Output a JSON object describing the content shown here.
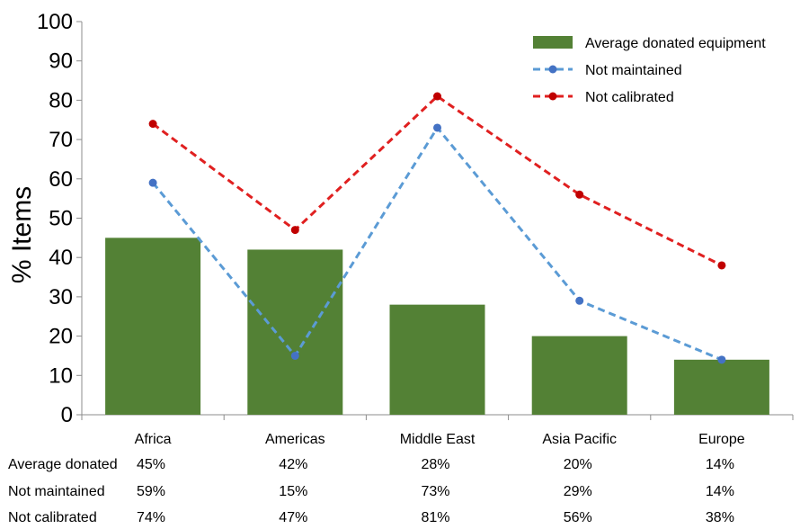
{
  "chart_data": {
    "type": "bar",
    "ylabel": "% Items",
    "ylim": [
      0,
      100
    ],
    "yticks": [
      "0",
      "10",
      "20",
      "30",
      "40",
      "50",
      "60",
      "70",
      "80",
      "90",
      "100"
    ],
    "categories": [
      "Africa",
      "Americas",
      "Middle East",
      "Asia Pacific",
      "Europe"
    ],
    "legend_position": "top-right",
    "series": [
      {
        "name": "Average donated equipment",
        "kind": "bar",
        "color": "#538135",
        "values": [
          45,
          42,
          28,
          20,
          14
        ]
      },
      {
        "name": "Not maintained",
        "kind": "line",
        "style": "dashed",
        "color": "#5B9BD5",
        "marker_color": "#4472C4",
        "values": [
          59,
          15,
          73,
          29,
          14
        ]
      },
      {
        "name": "Not calibrated",
        "kind": "line",
        "style": "dashed",
        "color": "#E02020",
        "marker_color": "#C00000",
        "values": [
          74,
          47,
          81,
          56,
          38
        ]
      }
    ],
    "table": {
      "rows": [
        {
          "label": "Average donated",
          "values": [
            "45%",
            "42%",
            "28%",
            "20%",
            "14%"
          ]
        },
        {
          "label": "Not maintained",
          "values": [
            "59%",
            "15%",
            "73%",
            "29%",
            "14%"
          ]
        },
        {
          "label": "Not calibrated",
          "values": [
            "74%",
            "47%",
            "81%",
            "56%",
            "38%"
          ]
        }
      ]
    }
  }
}
